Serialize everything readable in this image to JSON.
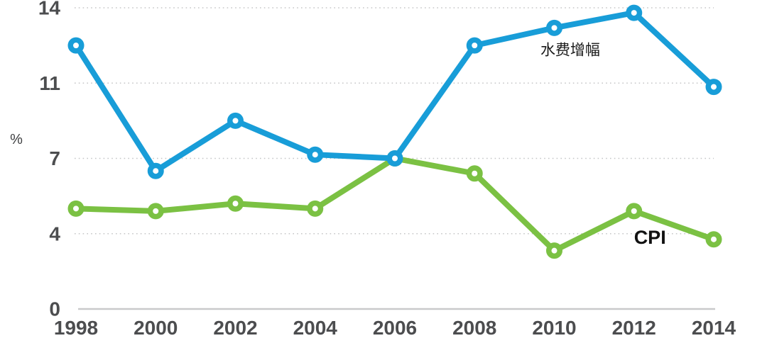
{
  "chart_data": {
    "type": "line",
    "title": "",
    "y_axis_unit": "%",
    "x": [
      1998,
      2000,
      2002,
      2004,
      2006,
      2008,
      2010,
      2012,
      2014
    ],
    "x_tick_labels": [
      "1998",
      "2000",
      "2002",
      "2004",
      "2006",
      "2008",
      "2010",
      "2012",
      "2014"
    ],
    "y_ticks": [
      0,
      4,
      7,
      11,
      14
    ],
    "y_tick_labels": [
      "0",
      "4",
      "7",
      "11",
      "14"
    ],
    "ylim_note": "ticks evenly spaced on axis (non-linear label steps 0-4-7-11-14)",
    "grid": "horizontal-dotted",
    "legend_position": "inline-labels",
    "axis_label_color": "#4c4d4f",
    "gridline_color": "#c5c6c7",
    "zero_axis_color": "#c9cacb",
    "series": [
      {
        "key": "water-fee",
        "name": "水费增幅",
        "color": "#189dd8",
        "values": [
          12.5,
          6.5,
          9.0,
          7.2,
          7.0,
          12.5,
          13.2,
          13.8,
          10.8
        ]
      },
      {
        "key": "cpi",
        "name": "CPI",
        "color": "#7bc143",
        "values": [
          5.0,
          4.9,
          5.2,
          5.0,
          7.0,
          6.4,
          3.1,
          4.9,
          3.7
        ]
      }
    ],
    "annotations": [
      {
        "key": "water-fee-label",
        "text": "水费增幅",
        "x": 2010.4,
        "y": 12.3,
        "emphasis": false,
        "color": "#1a1a1a"
      },
      {
        "key": "cpi-label",
        "text": "CPI",
        "x": 2012.4,
        "y": 3.8,
        "emphasis": true,
        "color": "#111111"
      }
    ]
  }
}
